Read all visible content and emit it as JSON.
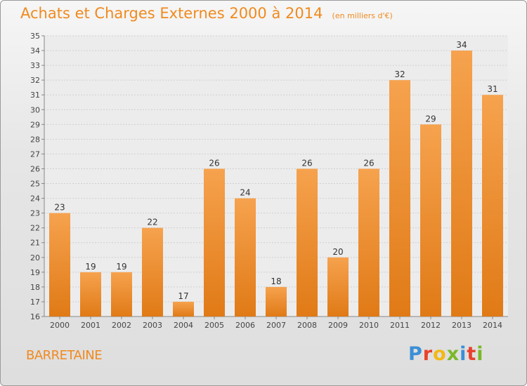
{
  "header": {
    "title": "Achats et Charges Externes 2000 à 2014",
    "unit": "(en milliers d'€)"
  },
  "footer": {
    "commune": "BARRETAINE",
    "logo_text": "Proxiti",
    "logo_colors": [
      "#3b8fd6",
      "#e8412c",
      "#f2b816",
      "#7bb829",
      "#3b8fd6",
      "#e8412c",
      "#7bb829"
    ]
  },
  "colors": {
    "bar_top": "#f6a24e",
    "bar_bottom": "#e07a16",
    "accent": "#f08a1e"
  },
  "chart_data": {
    "type": "bar",
    "title": "Achats et Charges Externes 2000 à 2014",
    "xlabel": "",
    "ylabel": "",
    "categories": [
      "2000",
      "2001",
      "2002",
      "2003",
      "2004",
      "2005",
      "2006",
      "2007",
      "2008",
      "2009",
      "2010",
      "2011",
      "2012",
      "2013",
      "2014"
    ],
    "values": [
      23,
      19,
      19,
      22,
      17,
      26,
      24,
      18,
      26,
      20,
      26,
      32,
      29,
      34,
      31
    ],
    "ylim": [
      16,
      35
    ],
    "yticks": [
      16,
      17,
      18,
      19,
      20,
      21,
      22,
      23,
      24,
      25,
      26,
      27,
      28,
      29,
      30,
      31,
      32,
      33,
      34,
      35
    ],
    "grid": true,
    "data_labels": true
  }
}
